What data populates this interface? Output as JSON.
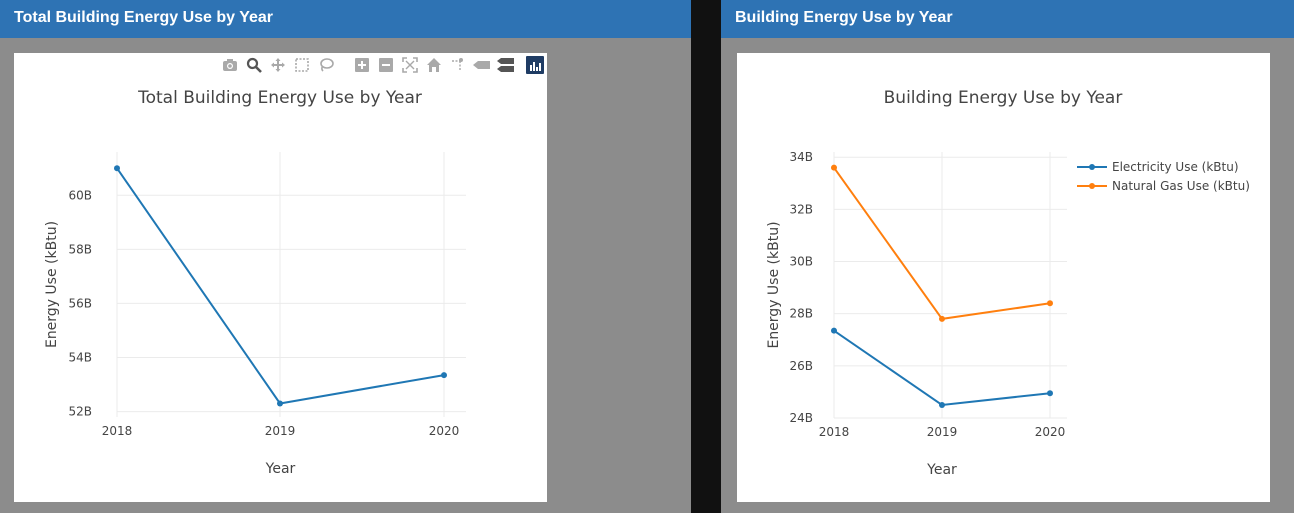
{
  "left_panel": {
    "header": "Total Building Energy Use by Year",
    "modebar": [
      "camera-icon",
      "zoom-icon",
      "pan-icon",
      "box-select-icon",
      "lasso-icon",
      "zoom-in-icon",
      "zoom-out-icon",
      "autoscale-icon",
      "reset-axes-icon",
      "spike-lines-icon",
      "hover-closest-icon",
      "hover-compare-icon",
      "plotly-logo-icon"
    ]
  },
  "right_panel": {
    "header": "Building Energy Use by Year"
  },
  "chart_data": [
    {
      "type": "line",
      "title": "Total Building Energy Use by Year",
      "xlabel": "Year",
      "ylabel": "Energy Use (kBtu)",
      "x": [
        2018,
        2019,
        2020
      ],
      "x_ticks": [
        "2018",
        "2019",
        "2020"
      ],
      "y_ticks": [
        "52B",
        "54B",
        "56B",
        "58B",
        "60B"
      ],
      "y_tick_values": [
        52,
        54,
        56,
        58,
        60
      ],
      "ylim": [
        51.8,
        61.6
      ],
      "grid": true,
      "series": [
        {
          "values": [
            61.0,
            52.3,
            53.35
          ],
          "color": "#1f77b4"
        }
      ]
    },
    {
      "type": "line",
      "title": "Building Energy Use by Year",
      "xlabel": "Year",
      "ylabel": "Energy Use (kBtu)",
      "x": [
        2018,
        2019,
        2020
      ],
      "x_ticks": [
        "2018",
        "2019",
        "2020"
      ],
      "y_ticks": [
        "24B",
        "26B",
        "28B",
        "30B",
        "32B",
        "34B"
      ],
      "y_tick_values": [
        24,
        26,
        28,
        30,
        32,
        34
      ],
      "ylim": [
        24,
        34.2
      ],
      "grid": true,
      "legend_position": "top-right",
      "series": [
        {
          "name": "Electricity Use (kBtu)",
          "values": [
            27.35,
            24.5,
            24.95
          ],
          "color": "#1f77b4"
        },
        {
          "name": "Natural Gas Use (kBtu)",
          "values": [
            33.6,
            27.8,
            28.4
          ],
          "color": "#ff7f0e"
        }
      ]
    }
  ]
}
